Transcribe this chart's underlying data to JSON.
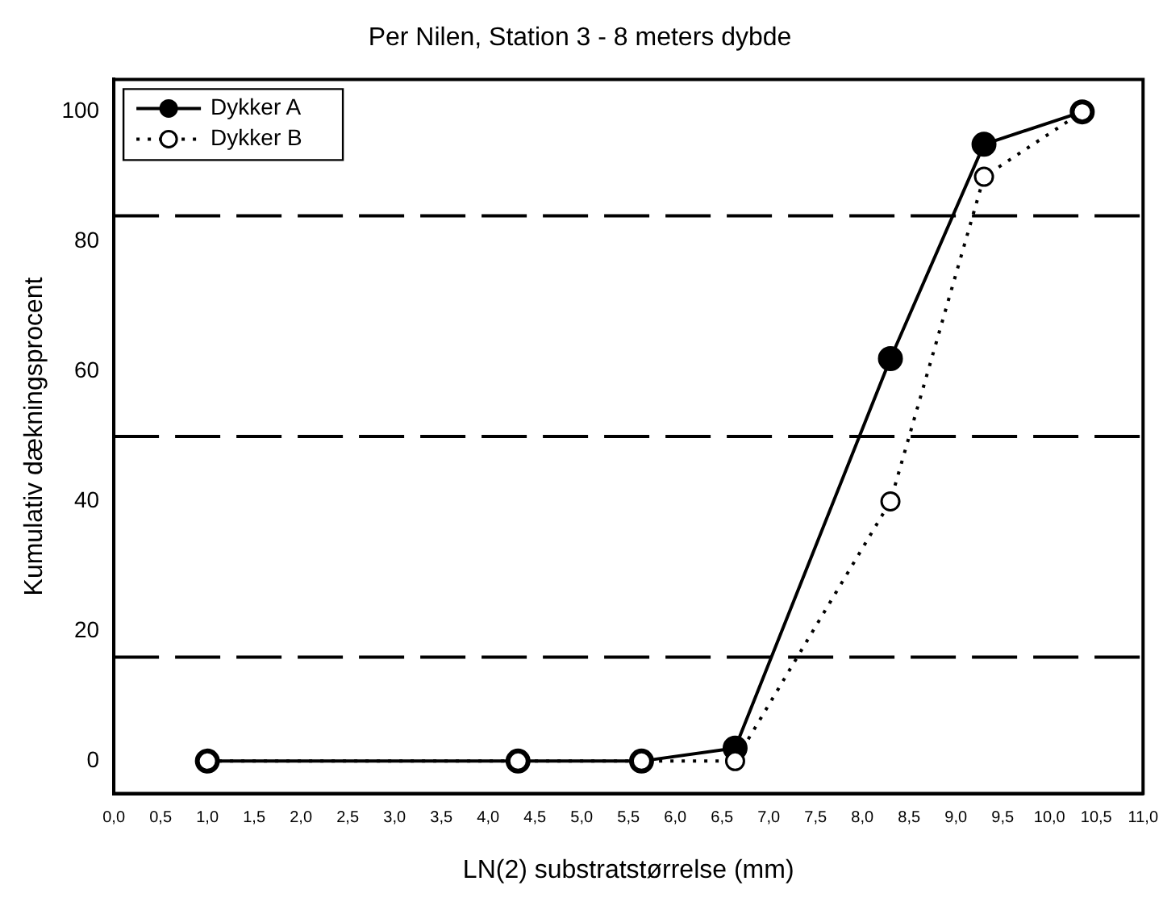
{
  "chart_data": {
    "type": "line",
    "title": "Per Nilen, Station 3 - 8 meters dybde",
    "xlabel": "LN(2) substratstørrelse (mm)",
    "ylabel": "Kumulativ dækningsprocent",
    "x": [
      1.0,
      4.32,
      5.64,
      6.64,
      8.3,
      9.3,
      10.35
    ],
    "series": [
      {
        "name": "Dykker A",
        "color": "#000000",
        "values": [
          0,
          0,
          0,
          2,
          62,
          95,
          100
        ],
        "marker": "circle",
        "line_style": "solid"
      },
      {
        "name": "Dykker B",
        "color": "#000000",
        "values": [
          0,
          0,
          0,
          0,
          40,
          90,
          100
        ],
        "marker": "circle",
        "line_style": "dotted"
      }
    ],
    "xlim": [
      0,
      11
    ],
    "xticks": [
      {
        "value": 0,
        "label": "0,0"
      },
      {
        "value": 0.5,
        "label": "0,5"
      },
      {
        "value": 1,
        "label": "1,0"
      },
      {
        "value": 1.5,
        "label": "1,5"
      },
      {
        "value": 2,
        "label": "2,0"
      },
      {
        "value": 2.5,
        "label": "2,5"
      },
      {
        "value": 3,
        "label": "3,0"
      },
      {
        "value": 3.5,
        "label": "3,5"
      },
      {
        "value": 4,
        "label": "4,0"
      },
      {
        "value": 4.5,
        "label": "4,5"
      },
      {
        "value": 5,
        "label": "5,0"
      },
      {
        "value": 5.5,
        "label": "5,5"
      },
      {
        "value": 6,
        "label": "6,0"
      },
      {
        "value": 6.5,
        "label": "6,5"
      },
      {
        "value": 7,
        "label": "7,0"
      },
      {
        "value": 7.5,
        "label": "7,5"
      },
      {
        "value": 8,
        "label": "8,0"
      },
      {
        "value": 8.5,
        "label": "8,5"
      },
      {
        "value": 9,
        "label": "9,0"
      },
      {
        "value": 9.5,
        "label": "9,5"
      },
      {
        "value": 10,
        "label": "10,0"
      },
      {
        "value": 10.5,
        "label": "10,5"
      },
      {
        "value": 11,
        "label": "11,0"
      }
    ],
    "ylim": [
      -5,
      105
    ],
    "yticks": [
      0,
      20,
      40,
      60,
      80,
      100
    ],
    "ref_lines": [
      {
        "axis": "y",
        "value": 16,
        "line_style": "dashed",
        "color": "#000000"
      },
      {
        "axis": "y",
        "value": 50,
        "line_style": "dashed",
        "color": "#000000"
      },
      {
        "axis": "y",
        "value": 84,
        "line_style": "dashed",
        "color": "#000000"
      }
    ],
    "grid": false,
    "legend": "top left"
  }
}
